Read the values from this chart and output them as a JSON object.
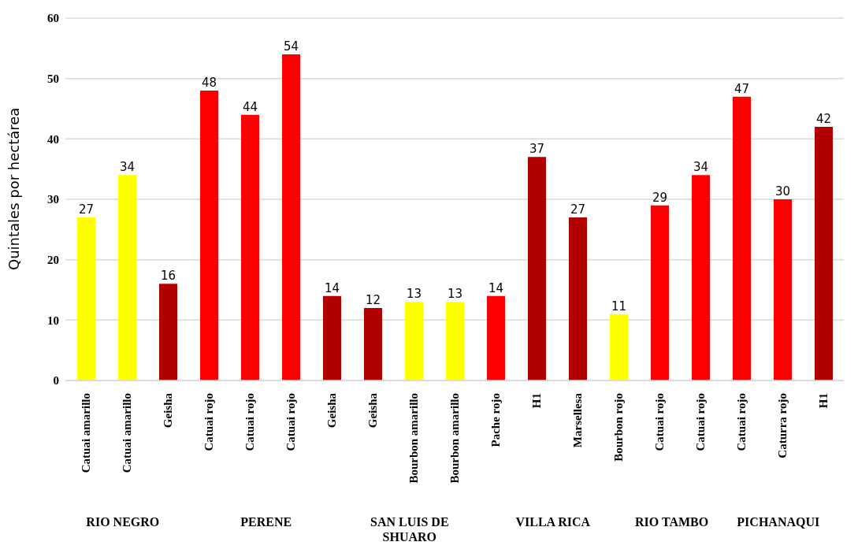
{
  "chart_data": {
    "type": "bar",
    "ylabel": "Quintales por hectárea",
    "categories": [
      "Catuai amarillo",
      "Catuai amarillo",
      "Geisha",
      "Catuai rojo",
      "Catuai rojo",
      "Catuai rojo",
      "Geisha",
      "Geisha",
      "Bourbon amarillo",
      "Bourbon amarillo",
      "Pache rojo",
      "H1",
      "Marsellesa",
      "Bourbon rojo",
      "Catuai rojo",
      "Catuai rojo",
      "Catuai rojo",
      "Caturra rojo",
      "H1"
    ],
    "values": [
      27,
      34,
      16,
      48,
      44,
      54,
      14,
      12,
      13,
      13,
      14,
      37,
      27,
      11,
      29,
      34,
      47,
      30,
      42
    ],
    "colors": [
      "#ffff00",
      "#ffff00",
      "#b00000",
      "#ff0000",
      "#ff0000",
      "#ff0000",
      "#b00000",
      "#b00000",
      "#ffff00",
      "#ffff00",
      "#ff0000",
      "#b00000",
      "#b00000",
      "#ffff00",
      "#ff0000",
      "#ff0000",
      "#ff0000",
      "#ff0000",
      "#b00000"
    ],
    "ylim": [
      0,
      60
    ],
    "yticks": [
      0,
      10,
      20,
      30,
      40,
      50,
      60
    ],
    "grid": "y",
    "data_labels": true,
    "annotations": [
      "RIO NEGRO",
      "PERENE",
      "SAN LUIS DE SHUARO",
      "VILLA RICA",
      "RIO TAMBO",
      "PICHANAQUI"
    ]
  }
}
